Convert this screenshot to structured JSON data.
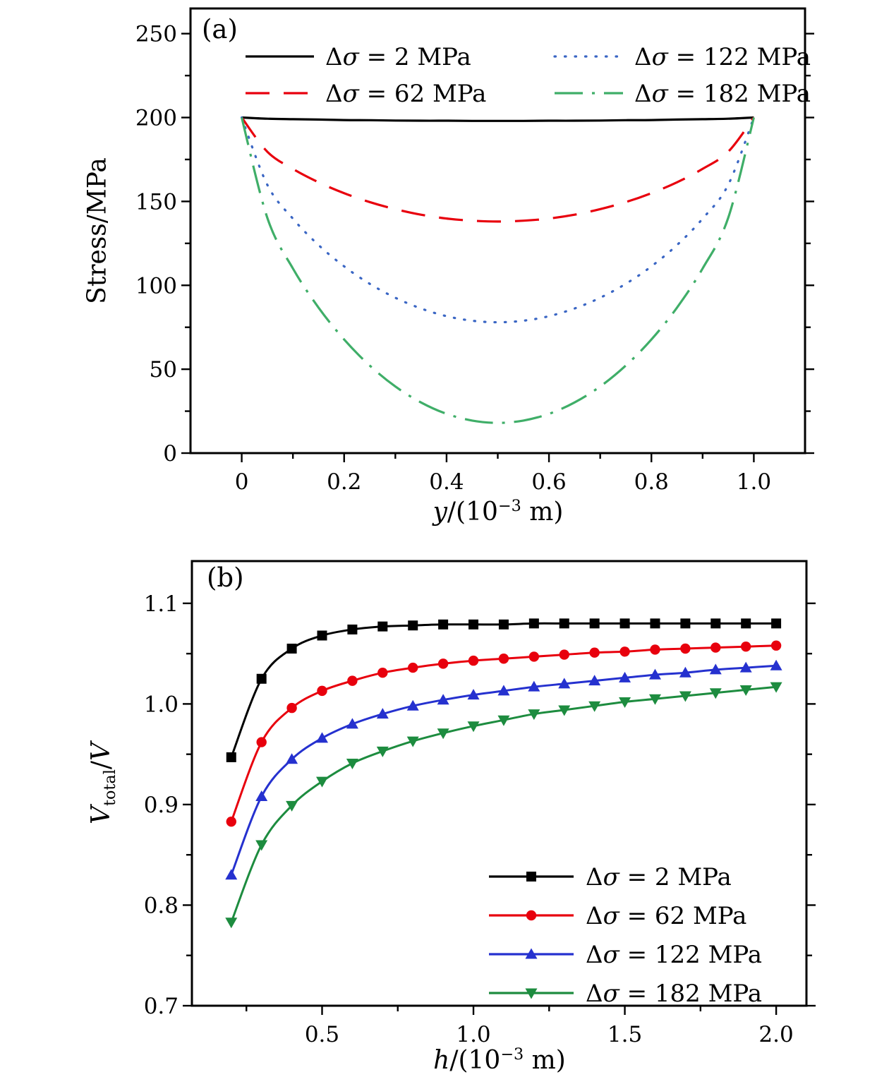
{
  "figure": {
    "panel_a_tag": "(a)",
    "panel_b_tag": "(b)"
  },
  "chart_data": [
    {
      "id": "a",
      "type": "line",
      "tag": "(a)",
      "xlabel": "y/(10⁻³ m)",
      "ylabel": "Stress/MPa",
      "xlabel_parts": [
        {
          "t": "y",
          "i": 1
        },
        {
          "t": "/(10"
        },
        {
          "t": "−3",
          "sup": 1
        },
        {
          "t": " m)"
        }
      ],
      "ylabel_parts": [
        {
          "t": "Stress/MPa"
        }
      ],
      "xlim": [
        -0.1,
        1.1
      ],
      "ylim": [
        0,
        265
      ],
      "xticks": {
        "values": [
          0,
          0.2,
          0.4,
          0.6,
          0.8,
          1.0
        ],
        "labels": [
          "0",
          "0.2",
          "0.4",
          "0.6",
          "0.8",
          "1.0"
        ]
      },
      "yticks": {
        "values": [
          0,
          50,
          100,
          150,
          200,
          250
        ],
        "labels": [
          "0",
          "50",
          "100",
          "150",
          "200",
          "250"
        ]
      },
      "xminor": [
        0.1,
        0.3,
        0.5,
        0.7,
        0.9
      ],
      "yminor": [
        25,
        75,
        125,
        175,
        225
      ],
      "grid": false,
      "legend_position": "top-inside-two-columns",
      "x": [
        0,
        0.05,
        0.1,
        0.15,
        0.2,
        0.25,
        0.3,
        0.35,
        0.4,
        0.45,
        0.5,
        0.55,
        0.6,
        0.65,
        0.7,
        0.75,
        0.8,
        0.85,
        0.9,
        0.95,
        1.0
      ],
      "series": [
        {
          "name": "Δσ = 2 MPa",
          "color": "#000000",
          "dash": "solid",
          "values": [
            200,
            199.3,
            199.0,
            198.8,
            198.5,
            198.4,
            198.2,
            198.1,
            198.1,
            198.0,
            198.0,
            198.0,
            198.1,
            198.1,
            198.2,
            198.4,
            198.5,
            198.8,
            199.0,
            199.3,
            200
          ]
        },
        {
          "name": "Δσ = 62 MPa",
          "color": "#e8000d",
          "dash": "dash",
          "values": [
            200,
            179.6,
            169.4,
            161.4,
            154.9,
            149.6,
            145.4,
            142.1,
            139.8,
            138.5,
            138.0,
            138.5,
            139.8,
            142.1,
            145.4,
            149.6,
            154.9,
            161.4,
            169.4,
            179.6,
            200
          ]
        },
        {
          "name": "Δσ = 122 MPa",
          "color": "#3a66c4",
          "dash": "dot",
          "values": [
            200,
            159.9,
            139.7,
            124.0,
            111.3,
            100.9,
            92.6,
            86.2,
            81.6,
            78.9,
            78.0,
            78.9,
            81.6,
            86.2,
            92.6,
            100.9,
            111.3,
            124.0,
            139.7,
            159.9,
            200
          ]
        },
        {
          "name": "Δσ = 182 MPa",
          "color": "#3fae68",
          "dash": "dashdot",
          "values": [
            200,
            140.2,
            110.0,
            86.7,
            67.7,
            52.2,
            39.7,
            30.2,
            23.4,
            19.4,
            18.0,
            19.4,
            23.4,
            30.2,
            39.7,
            52.2,
            67.7,
            86.7,
            110.0,
            140.2,
            200
          ]
        }
      ]
    },
    {
      "id": "b",
      "type": "line",
      "tag": "(b)",
      "xlabel": "h/(10⁻³ m)",
      "ylabel": "Vtotal/V",
      "xlabel_parts": [
        {
          "t": "h",
          "i": 1
        },
        {
          "t": "/(10"
        },
        {
          "t": "−3",
          "sup": 1
        },
        {
          "t": " m)"
        }
      ],
      "ylabel_parts": [
        {
          "t": "V",
          "i": 1
        },
        {
          "t": "total",
          "sub": 1
        },
        {
          "t": "/"
        },
        {
          "t": "V",
          "i": 1
        }
      ],
      "xlim": [
        0.07,
        2.1
      ],
      "ylim": [
        0.7,
        1.142
      ],
      "xticks": {
        "values": [
          0.5,
          1.0,
          1.5,
          2.0
        ],
        "labels": [
          "0.5",
          "1.0",
          "1.5",
          "2.0"
        ]
      },
      "yticks": {
        "values": [
          0.7,
          0.8,
          0.9,
          1.0,
          1.1
        ],
        "labels": [
          "0.7",
          "0.8",
          "0.9",
          "1.0",
          "1.1"
        ]
      },
      "xminor": [
        0.25,
        0.75,
        1.25,
        1.75
      ],
      "yminor": [
        0.75,
        0.85,
        0.95,
        1.05
      ],
      "grid": false,
      "legend_position": "bottom-right-inside",
      "x": [
        0.2,
        0.3,
        0.4,
        0.5,
        0.6,
        0.7,
        0.8,
        0.9,
        1.0,
        1.1,
        1.2,
        1.3,
        1.4,
        1.5,
        1.6,
        1.7,
        1.8,
        1.9,
        2.0
      ],
      "series": [
        {
          "name": "Δσ = 2 MPa",
          "color": "#000000",
          "dash": "solid",
          "marker": "square",
          "values": [
            0.947,
            1.025,
            1.055,
            1.068,
            1.074,
            1.077,
            1.078,
            1.079,
            1.079,
            1.079,
            1.08,
            1.08,
            1.08,
            1.08,
            1.08,
            1.08,
            1.08,
            1.08,
            1.08
          ]
        },
        {
          "name": "Δσ = 62 MPa",
          "color": "#e8000d",
          "dash": "solid",
          "marker": "circle",
          "values": [
            0.883,
            0.962,
            0.996,
            1.013,
            1.023,
            1.031,
            1.036,
            1.04,
            1.043,
            1.045,
            1.047,
            1.049,
            1.051,
            1.052,
            1.054,
            1.055,
            1.056,
            1.057,
            1.058
          ]
        },
        {
          "name": "Δσ = 122 MPa",
          "color": "#2531cf",
          "dash": "solid",
          "marker": "triangle-up",
          "values": [
            0.83,
            0.908,
            0.945,
            0.966,
            0.98,
            0.99,
            0.998,
            1.004,
            1.009,
            1.013,
            1.017,
            1.02,
            1.023,
            1.026,
            1.029,
            1.031,
            1.034,
            1.036,
            1.038
          ]
        },
        {
          "name": "Δσ = 182 MPa",
          "color": "#1d8c3f",
          "dash": "solid",
          "marker": "triangle-down",
          "values": [
            0.783,
            0.86,
            0.899,
            0.923,
            0.941,
            0.953,
            0.963,
            0.971,
            0.978,
            0.984,
            0.99,
            0.994,
            0.998,
            1.002,
            1.005,
            1.008,
            1.011,
            1.014,
            1.017
          ]
        }
      ]
    }
  ]
}
